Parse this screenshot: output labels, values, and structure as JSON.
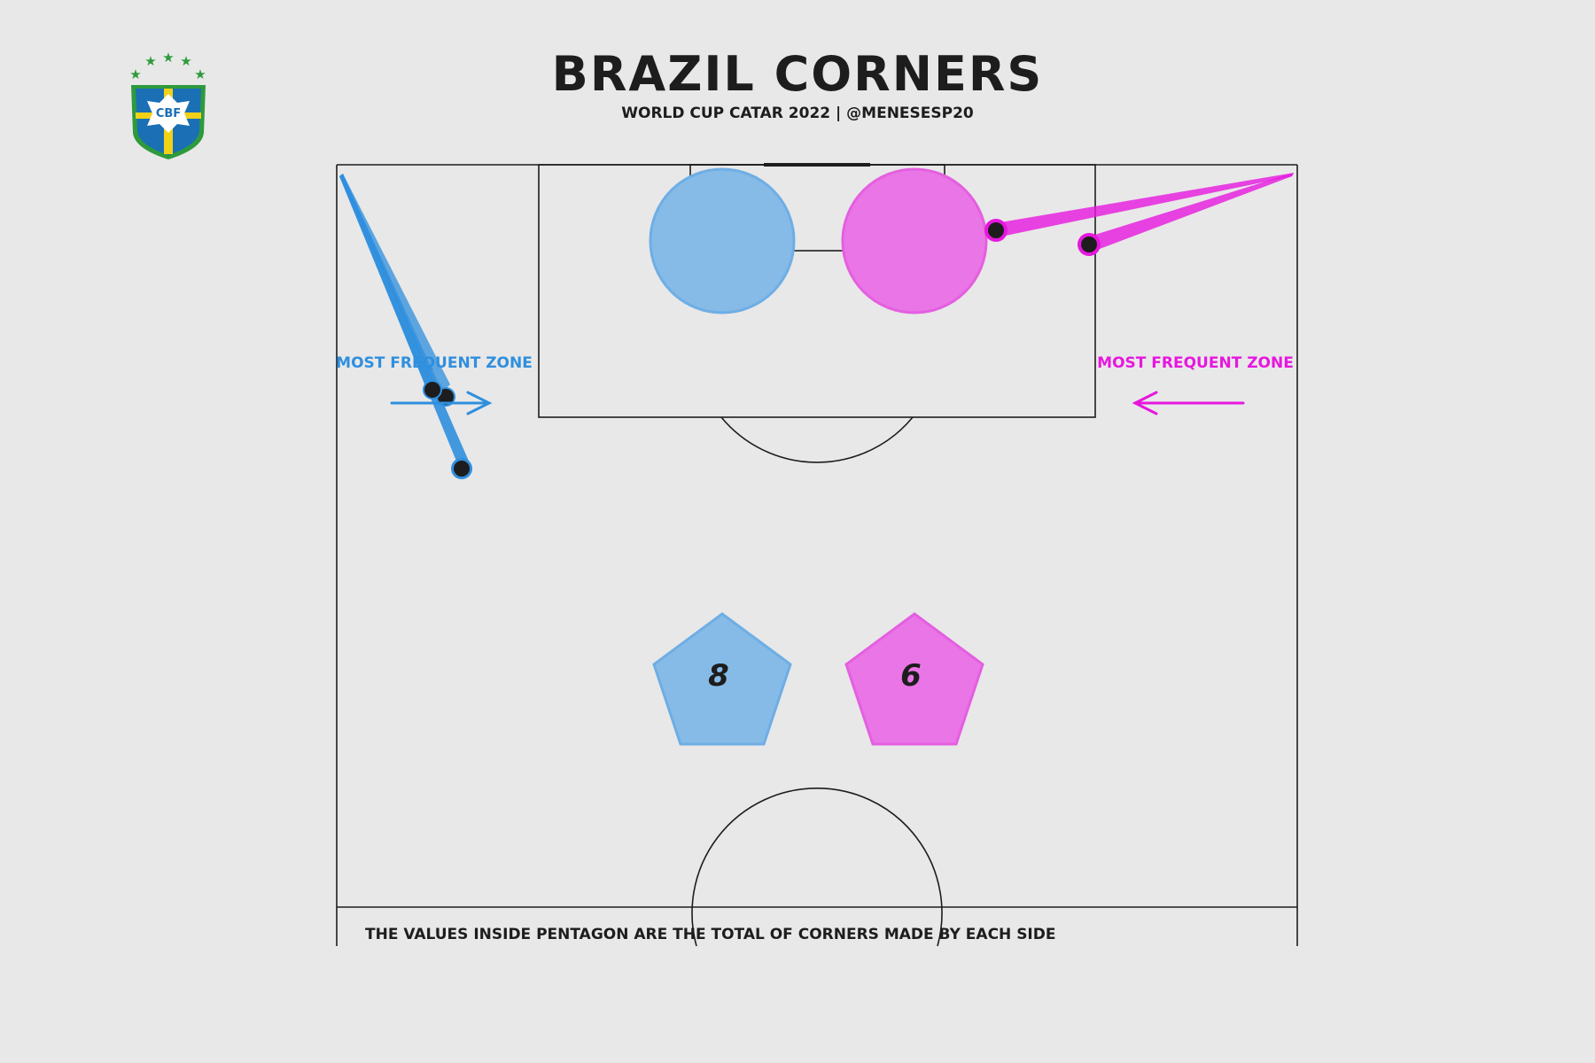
{
  "title": "BRAZIL CORNERS",
  "subtitle": "WORLD CUP CATAR 2022 | @MENESESP20",
  "logo_text": "CBF",
  "colors": {
    "background": "#e8e8e8",
    "left_side": "#2f8fde",
    "left_fill": "#86bbe7",
    "right_side": "#e617de",
    "right_fill": "#ea75e6",
    "lines": "#1d1d1d",
    "logo_blue": "#1a6fb5",
    "logo_green": "#2e9a3c",
    "logo_yellow": "#f2d117"
  },
  "chart_data": {
    "type": "pitch-corners",
    "sides": [
      {
        "side": "left",
        "total_corners": 8,
        "zone_label": "MOST FREQUENT ZONE",
        "arrow_direction": "right"
      },
      {
        "side": "right",
        "total_corners": 6,
        "zone_label": "MOST FREQUENT ZONE",
        "arrow_direction": "left"
      }
    ],
    "footnote": "THE VALUES INSIDE PENTAGON ARE THE TOTAL OF CORNERS MADE BY EACH SIDE"
  }
}
